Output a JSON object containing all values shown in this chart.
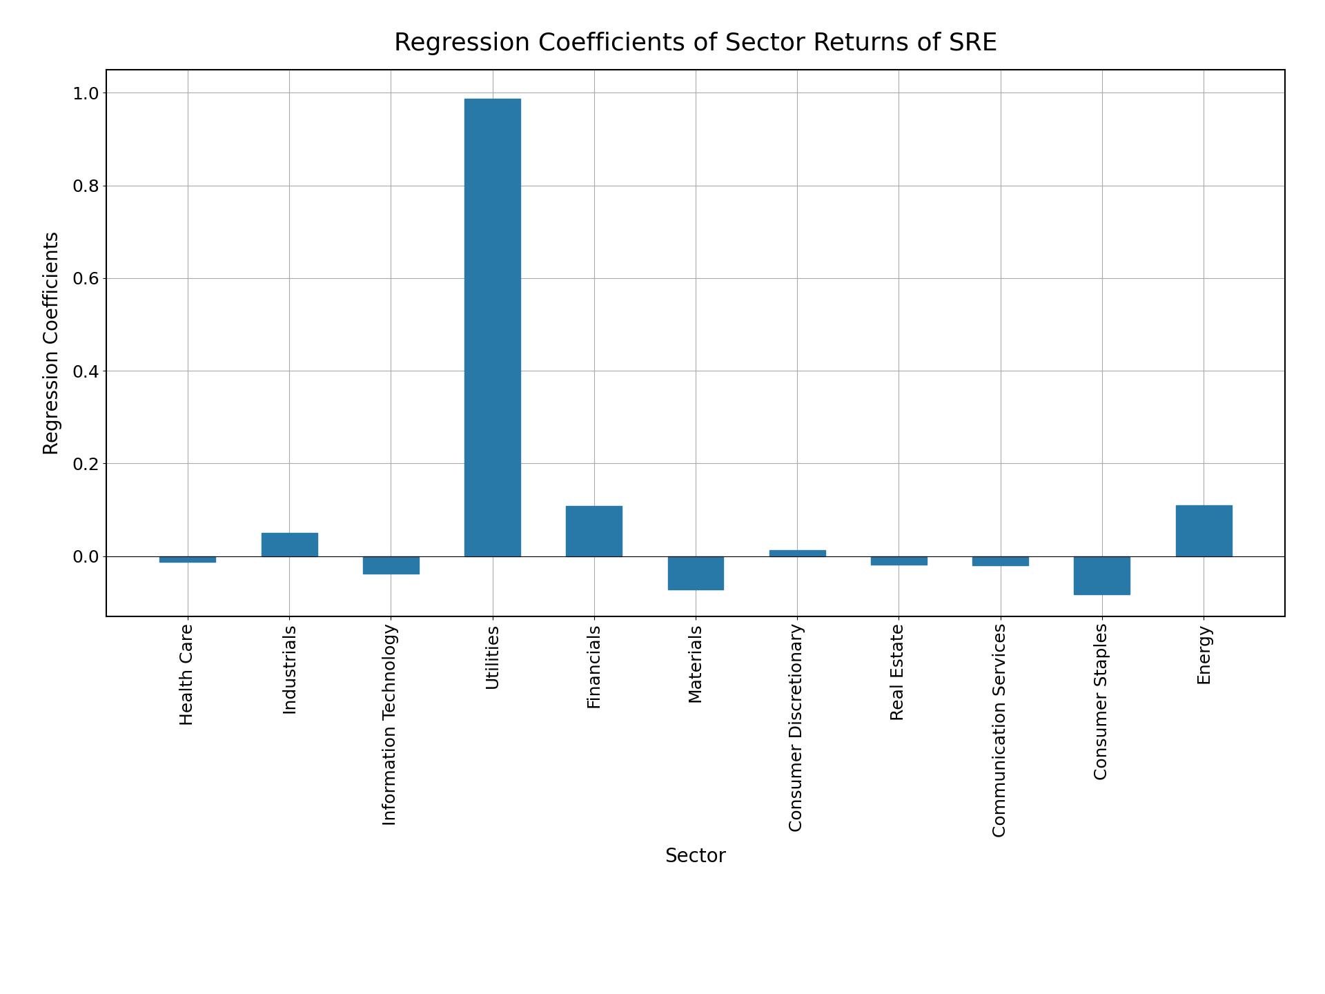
{
  "categories": [
    "Health Care",
    "Industrials",
    "Information Technology",
    "Utilities",
    "Financials",
    "Materials",
    "Consumer Discretionary",
    "Real Estate",
    "Communication Services",
    "Consumer Staples",
    "Energy"
  ],
  "values": [
    -0.012,
    0.05,
    -0.038,
    0.987,
    0.108,
    -0.072,
    0.012,
    -0.018,
    -0.02,
    -0.082,
    0.11
  ],
  "bar_color": "#2878a8",
  "title": "Regression Coefficients of Sector Returns of SRE",
  "xlabel": "Sector",
  "ylabel": "Regression Coefficients",
  "ylim": [
    -0.13,
    1.05
  ],
  "yticks": [
    0.0,
    0.2,
    0.4,
    0.6,
    0.8,
    1.0
  ],
  "title_fontsize": 26,
  "label_fontsize": 20,
  "tick_fontsize": 18,
  "background_color": "#ffffff",
  "grid_color": "#aaaaaa",
  "bar_width": 0.55
}
